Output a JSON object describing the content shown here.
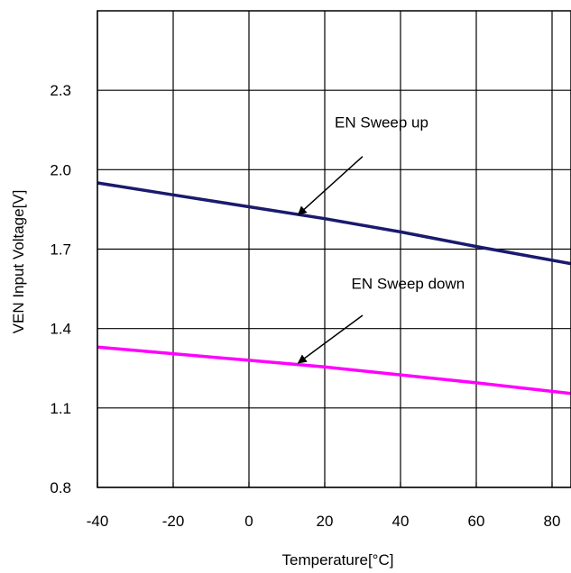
{
  "chart_data": {
    "type": "line",
    "xlabel": "Temperature[°C]",
    "ylabel": "VEN Input Voltage[V]",
    "xlim": [
      -40,
      85
    ],
    "ylim": [
      0.8,
      2.6
    ],
    "x_ticks": [
      -40,
      -20,
      0,
      20,
      40,
      60,
      80
    ],
    "y_ticks": [
      0.8,
      1.1,
      1.4,
      1.7,
      2.0,
      2.3
    ],
    "x_tick_labels": [
      "-40",
      "-20",
      "0",
      "20",
      "40",
      "60",
      "80"
    ],
    "y_tick_labels": [
      "0.8",
      "1.1",
      "1.4",
      "1.7",
      "2.0",
      "2.3"
    ],
    "grid": true,
    "series": [
      {
        "name": "EN Sweep up",
        "color": "#1a1a6e",
        "x": [
          -40,
          -20,
          0,
          20,
          40,
          60,
          85
        ],
        "y": [
          1.95,
          1.905,
          1.86,
          1.815,
          1.765,
          1.71,
          1.645
        ]
      },
      {
        "name": "EN Sweep down",
        "color": "#ff00ff",
        "x": [
          -40,
          -20,
          0,
          20,
          40,
          60,
          85
        ],
        "y": [
          1.33,
          1.305,
          1.28,
          1.255,
          1.225,
          1.195,
          1.155
        ]
      }
    ],
    "annotations": [
      {
        "text": "EN Sweep up",
        "series_index": 0,
        "target_x": 13,
        "target_y": 1.83,
        "text_x": 35,
        "text_y": 2.16,
        "arrow_from_x": 30,
        "arrow_from_y": 2.05
      },
      {
        "text": "EN Sweep down",
        "series_index": 1,
        "target_x": 13,
        "target_y": 1.27,
        "text_x": 42,
        "text_y": 1.55,
        "arrow_from_x": 30,
        "arrow_from_y": 1.45
      }
    ]
  }
}
